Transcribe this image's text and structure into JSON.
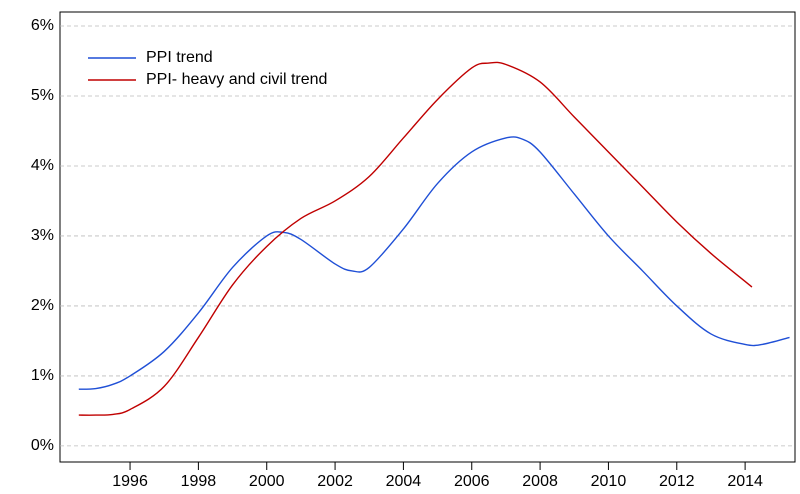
{
  "chart_data": {
    "type": "line",
    "series": [
      {
        "name": "PPI trend",
        "color": "#1f4fd6",
        "x": [
          1994.5,
          1995,
          1995.5,
          1996,
          1997,
          1998,
          1999,
          2000,
          2000.5,
          2001,
          2002,
          2002.5,
          2003,
          2004,
          2005,
          2006,
          2007,
          2007.5,
          2008,
          2009,
          2010,
          2011,
          2012,
          2013,
          2014,
          2014.5,
          2015.3
        ],
        "values": [
          0.81,
          0.82,
          0.88,
          1.0,
          1.35,
          1.9,
          2.55,
          3.0,
          3.05,
          2.95,
          2.6,
          2.5,
          2.55,
          3.1,
          3.75,
          4.2,
          4.4,
          4.38,
          4.2,
          3.6,
          3.0,
          2.5,
          2.0,
          1.6,
          1.45,
          1.45,
          1.55
        ]
      },
      {
        "name": "PPI- heavy and civil trend",
        "color": "#c00000",
        "x": [
          1994.5,
          1995,
          1995.5,
          1996,
          1997,
          1998,
          1999,
          2000,
          2001,
          2002,
          2003,
          2004,
          2005,
          2006,
          2006.5,
          2007,
          2008,
          2009,
          2010,
          2011,
          2012,
          2013,
          2014,
          2014.2
        ],
        "values": [
          0.44,
          0.44,
          0.45,
          0.52,
          0.85,
          1.55,
          2.3,
          2.85,
          3.25,
          3.5,
          3.85,
          4.4,
          4.95,
          5.4,
          5.47,
          5.45,
          5.2,
          4.7,
          4.2,
          3.7,
          3.2,
          2.75,
          2.35,
          2.27
        ]
      }
    ],
    "xlim": [
      1993.95,
      2015.46
    ],
    "xticks": [
      1996,
      1998,
      2000,
      2002,
      2004,
      2006,
      2008,
      2010,
      2012,
      2014
    ],
    "ylim": [
      -0.23,
      6.2
    ],
    "yticks": [
      {
        "value": 0,
        "label": "0%"
      },
      {
        "value": 1,
        "label": "1%"
      },
      {
        "value": 2,
        "label": "2%"
      },
      {
        "value": 3,
        "label": "3%"
      },
      {
        "value": 4,
        "label": "4%"
      },
      {
        "value": 5,
        "label": "5%"
      },
      {
        "value": 6,
        "label": "6%"
      }
    ],
    "grid": true
  }
}
